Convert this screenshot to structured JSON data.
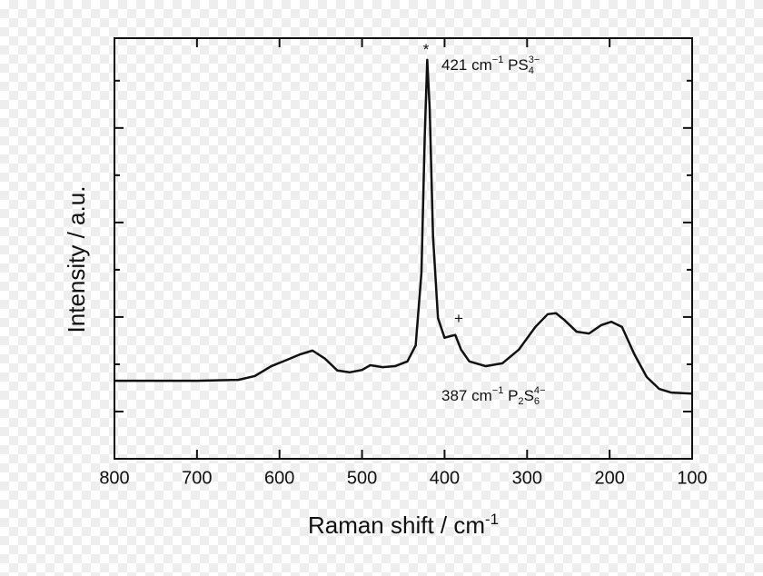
{
  "chart_data": {
    "type": "line",
    "x_label_parts": [
      {
        "text": "Raman shift / cm"
      },
      {
        "text": "-1",
        "shift": "super"
      }
    ],
    "y_label": "Intensity / a.u.",
    "xlim": [
      800,
      100
    ],
    "xticks": [
      800,
      700,
      600,
      500,
      400,
      300,
      200,
      100
    ],
    "ylim": [
      0,
      8.9
    ],
    "yticks": [
      1,
      3,
      5,
      7
    ],
    "yticks_minor": [
      2,
      4,
      6,
      8
    ],
    "show_ytick_labels": false,
    "grid": false,
    "series": [
      {
        "color": "#111111",
        "x": [
          800,
          700,
          650,
          630,
          610,
          590,
          575,
          560,
          545,
          530,
          515,
          500,
          490,
          475,
          460,
          445,
          435,
          428,
          424,
          421,
          418,
          414,
          408,
          400,
          392,
          387,
          380,
          370,
          350,
          330,
          310,
          290,
          275,
          265,
          255,
          240,
          225,
          210,
          198,
          185,
          170,
          155,
          140,
          125,
          100
        ],
        "values": [
          1.65,
          1.65,
          1.67,
          1.75,
          1.96,
          2.1,
          2.21,
          2.29,
          2.12,
          1.87,
          1.83,
          1.88,
          1.98,
          1.94,
          1.96,
          2.06,
          2.4,
          3.94,
          6.83,
          8.44,
          7.4,
          4.71,
          2.98,
          2.56,
          2.6,
          2.62,
          2.31,
          2.06,
          1.96,
          2.02,
          2.31,
          2.79,
          3.06,
          3.08,
          2.94,
          2.69,
          2.65,
          2.83,
          2.9,
          2.79,
          2.21,
          1.73,
          1.48,
          1.4,
          1.38
        ]
      }
    ],
    "annotations": [
      {
        "parts": [
          {
            "text": "*"
          }
        ]
      },
      {
        "parts": [
          {
            "text": "421 cm"
          },
          {
            "text": "−1",
            "shift": "super"
          },
          {
            "text": " PS"
          },
          {
            "text": "4",
            "shift": "sub"
          },
          {
            "text": "3−",
            "shift": "super"
          }
        ]
      },
      {
        "parts": [
          {
            "text": "+"
          }
        ]
      },
      {
        "parts": [
          {
            "text": "387 cm"
          },
          {
            "text": "−1",
            "shift": "super"
          },
          {
            "text": " P"
          },
          {
            "text": "2",
            "shift": "sub"
          },
          {
            "text": "S"
          },
          {
            "text": "6",
            "shift": "sub"
          },
          {
            "text": "4−",
            "shift": "super"
          }
        ]
      }
    ]
  }
}
